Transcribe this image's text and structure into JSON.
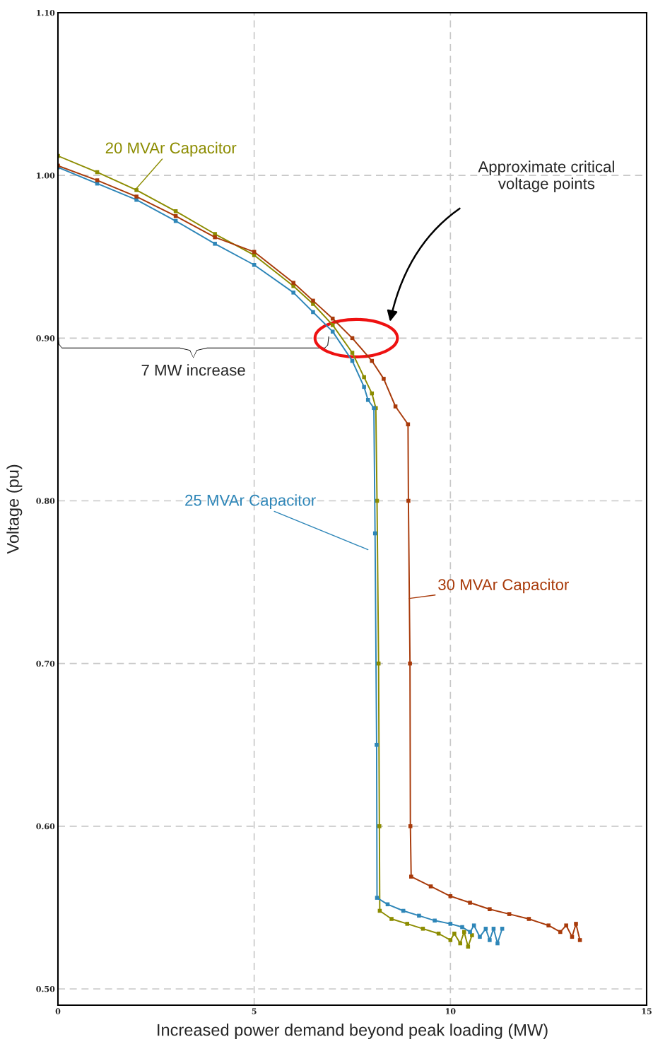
{
  "chart_data": {
    "type": "line",
    "xlabel": "Increased power demand beyond peak loading (MW)",
    "ylabel": "Voltage (pu)",
    "xlim": [
      0,
      15
    ],
    "ylim": [
      0.49,
      1.1
    ],
    "xticks": [
      0,
      5,
      10,
      15
    ],
    "yticks": [
      {
        "value": 0.5,
        "label": "0.50"
      },
      {
        "value": 0.6,
        "label": "0.60"
      },
      {
        "value": 0.7,
        "label": "0.70"
      },
      {
        "value": 0.8,
        "label": "0.80"
      },
      {
        "value": 0.9,
        "label": "0.90"
      },
      {
        "value": 1.0,
        "label": "1.00"
      },
      {
        "value": 1.1,
        "label": "1.10"
      }
    ],
    "grid": true,
    "marker": "square",
    "line_style": "solid",
    "series": [
      {
        "name": "20 MVAr Capacitor",
        "color": "#8c8c00",
        "x": [
          0,
          1,
          2,
          3,
          4,
          5,
          6,
          6.5,
          7,
          7.5,
          7.8,
          8.0,
          8.1,
          8.13,
          8.17,
          8.19,
          8.2,
          8.5,
          8.9,
          9.3,
          9.7,
          10.0,
          10.1,
          10.25,
          10.35,
          10.45,
          10.55
        ],
        "values": [
          1.012,
          1.002,
          0.991,
          0.978,
          0.964,
          0.951,
          0.932,
          0.921,
          0.908,
          0.891,
          0.876,
          0.866,
          0.857,
          0.8,
          0.7,
          0.6,
          0.548,
          0.543,
          0.54,
          0.537,
          0.534,
          0.53,
          0.534,
          0.528,
          0.535,
          0.526,
          0.533
        ]
      },
      {
        "name": "25 MVAr Capacitor",
        "color": "#2e86b8",
        "x": [
          0,
          1,
          2,
          3,
          4,
          5,
          6,
          6.5,
          7,
          7.5,
          7.8,
          7.9,
          8.05,
          8.08,
          8.12,
          8.13,
          8.4,
          8.8,
          9.2,
          9.6,
          10,
          10.3,
          10.5,
          10.6,
          10.75,
          10.9,
          11.0,
          11.1,
          11.2,
          11.32
        ],
        "values": [
          1.005,
          0.995,
          0.985,
          0.972,
          0.958,
          0.945,
          0.928,
          0.916,
          0.904,
          0.886,
          0.87,
          0.862,
          0.857,
          0.78,
          0.65,
          0.556,
          0.552,
          0.548,
          0.545,
          0.542,
          0.54,
          0.538,
          0.535,
          0.539,
          0.532,
          0.537,
          0.53,
          0.537,
          0.528,
          0.537
        ]
      },
      {
        "name": "30 MVAr Capacitor",
        "color": "#a83a0a",
        "x": [
          0,
          1,
          2,
          3,
          4,
          5,
          6,
          6.5,
          7,
          7.5,
          8,
          8.3,
          8.6,
          8.92,
          8.93,
          8.97,
          8.98,
          9.0,
          9.5,
          10,
          10.5,
          11,
          11.5,
          12,
          12.5,
          12.8,
          12.95,
          13.1,
          13.2,
          13.3
        ],
        "values": [
          1.006,
          0.997,
          0.987,
          0.975,
          0.962,
          0.953,
          0.934,
          0.923,
          0.912,
          0.9,
          0.886,
          0.875,
          0.858,
          0.847,
          0.8,
          0.7,
          0.6,
          0.569,
          0.563,
          0.557,
          0.553,
          0.549,
          0.546,
          0.543,
          0.539,
          0.535,
          0.539,
          0.532,
          0.54,
          0.53
        ]
      }
    ],
    "annotations": [
      "7 MW increase",
      "Approximate critical\nvoltage points"
    ]
  }
}
